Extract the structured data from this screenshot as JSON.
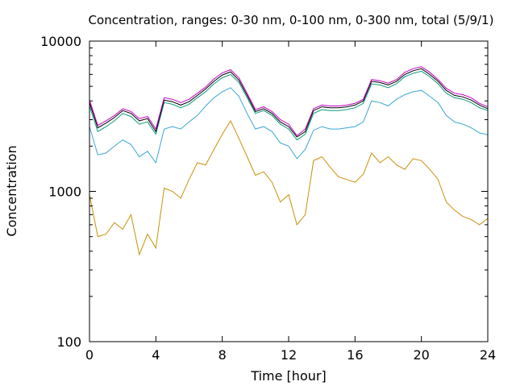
{
  "chart_data": {
    "type": "line",
    "title": "Concentration, ranges: 0-30 nm, 0-100 nm, 0-300 nm, total (5/9/1)",
    "xlabel": "Time [hour]",
    "ylabel": "Concentration",
    "xlim": [
      0,
      24
    ],
    "ylim": [
      100,
      10000
    ],
    "y_scale": "log",
    "grid": false,
    "x_ticks": [
      "0",
      "4",
      "8",
      "12",
      "16",
      "20",
      "24"
    ],
    "y_ticks": [
      "100",
      "1000",
      "10000"
    ],
    "x": [
      0,
      0.5,
      1,
      1.5,
      2,
      2.5,
      3,
      3.5,
      4,
      4.5,
      5,
      5.5,
      6,
      6.5,
      7,
      7.5,
      8,
      8.5,
      9,
      9.5,
      10,
      10.5,
      11,
      11.5,
      12,
      12.5,
      13,
      13.5,
      14,
      14.5,
      15,
      15.5,
      16,
      16.5,
      17,
      17.5,
      18,
      18.5,
      19,
      19.5,
      20,
      20.5,
      21,
      21.5,
      22,
      22.5,
      23,
      23.5,
      24
    ],
    "series": [
      {
        "color": "#c8900a",
        "values": [
          950,
          500,
          520,
          620,
          560,
          700,
          380,
          520,
          420,
          1050,
          1000,
          900,
          1200,
          1550,
          1500,
          1900,
          2400,
          2950,
          2250,
          1700,
          1280,
          1350,
          1150,
          850,
          950,
          600,
          700,
          1600,
          1700,
          1450,
          1250,
          1200,
          1150,
          1300,
          1800,
          1550,
          1700,
          1500,
          1400,
          1650,
          1600,
          1400,
          1200,
          850,
          750,
          680,
          650,
          600,
          660
        ]
      },
      {
        "color": "#3aa6d2",
        "values": [
          2700,
          1750,
          1800,
          2000,
          2200,
          2050,
          1700,
          1850,
          1550,
          2600,
          2700,
          2600,
          2900,
          3200,
          3700,
          4200,
          4600,
          4900,
          4300,
          3300,
          2600,
          2700,
          2500,
          2100,
          2000,
          1650,
          1900,
          2550,
          2700,
          2600,
          2600,
          2650,
          2700,
          2900,
          4000,
          3900,
          3700,
          4100,
          4400,
          4600,
          4700,
          4300,
          3900,
          3200,
          2900,
          2800,
          2650,
          2450,
          2380
        ]
      },
      {
        "color": "#0a9a7a",
        "values": [
          3700,
          2500,
          2700,
          2950,
          3300,
          3150,
          2800,
          2900,
          2400,
          3900,
          3800,
          3600,
          3800,
          4200,
          4600,
          5200,
          5700,
          6000,
          5300,
          4200,
          3300,
          3450,
          3200,
          2800,
          2600,
          2200,
          2400,
          3300,
          3500,
          3450,
          3450,
          3500,
          3600,
          3850,
          5200,
          5100,
          4900,
          5200,
          5800,
          6100,
          6300,
          5800,
          5200,
          4500,
          4200,
          4100,
          3900,
          3600,
          3450
        ]
      },
      {
        "color": "#000000",
        "values": [
          3900,
          2650,
          2850,
          3100,
          3450,
          3300,
          2950,
          3050,
          2500,
          4050,
          3950,
          3750,
          3950,
          4350,
          4800,
          5400,
          5950,
          6250,
          5500,
          4350,
          3400,
          3550,
          3300,
          2900,
          2700,
          2300,
          2500,
          3450,
          3650,
          3600,
          3600,
          3650,
          3750,
          4000,
          5400,
          5300,
          5100,
          5400,
          6000,
          6350,
          6550,
          6000,
          5400,
          4700,
          4350,
          4250,
          4050,
          3750,
          3550
        ]
      },
      {
        "color": "#c800c8",
        "values": [
          4050,
          2750,
          2950,
          3200,
          3550,
          3400,
          3050,
          3150,
          2600,
          4200,
          4100,
          3900,
          4100,
          4500,
          4950,
          5600,
          6150,
          6450,
          5700,
          4500,
          3500,
          3650,
          3400,
          3000,
          2800,
          2350,
          2600,
          3550,
          3750,
          3700,
          3700,
          3750,
          3850,
          4100,
          5550,
          5450,
          5250,
          5550,
          6200,
          6550,
          6750,
          6200,
          5550,
          4850,
          4500,
          4400,
          4200,
          3850,
          3650
        ]
      }
    ]
  }
}
